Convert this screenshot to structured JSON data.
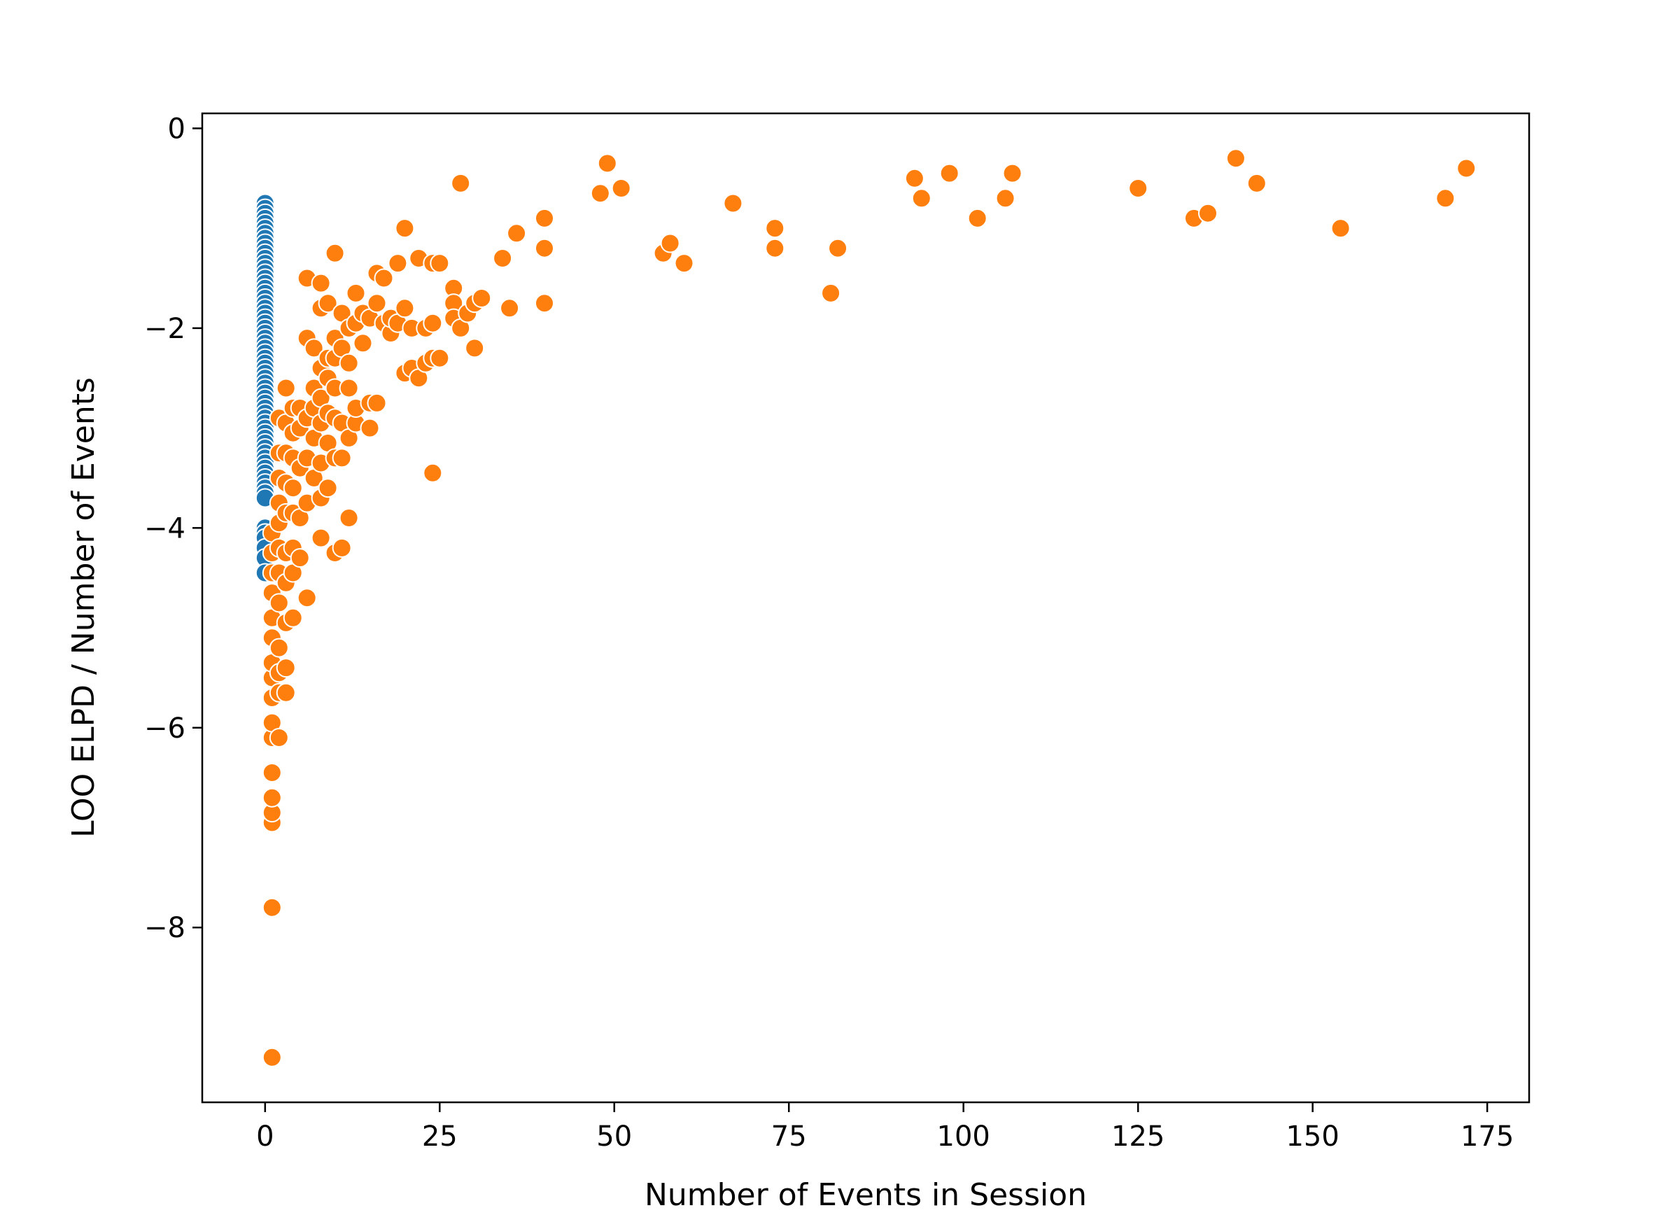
{
  "chart_data": {
    "type": "scatter",
    "title": "",
    "xlabel": "Number of Events in Session",
    "ylabel": "LOO ELPD / Number of Events",
    "xlim": [
      -9,
      181
    ],
    "ylim": [
      -9.75,
      0.15
    ],
    "xticks": [
      0,
      25,
      50,
      75,
      100,
      125,
      150,
      175
    ],
    "yticks": [
      0,
      -2,
      -4,
      -6,
      -8
    ],
    "xtick_labels": [
      "0",
      "25",
      "50",
      "75",
      "100",
      "125",
      "150",
      "175"
    ],
    "ytick_labels": [
      "0",
      "−2",
      "−4",
      "−6",
      "−8"
    ],
    "grid": false,
    "legend": "none",
    "series": [
      {
        "color": "#1f77b4",
        "points": [
          [
            0,
            -0.75
          ],
          [
            0,
            -0.8
          ],
          [
            0,
            -0.85
          ],
          [
            0,
            -0.9
          ],
          [
            0,
            -0.95
          ],
          [
            0,
            -1.0
          ],
          [
            0,
            -1.05
          ],
          [
            0,
            -1.1
          ],
          [
            0,
            -1.15
          ],
          [
            0,
            -1.2
          ],
          [
            0,
            -1.25
          ],
          [
            0,
            -1.3
          ],
          [
            0,
            -1.35
          ],
          [
            0,
            -1.4
          ],
          [
            0,
            -1.45
          ],
          [
            0,
            -1.5
          ],
          [
            0,
            -1.55
          ],
          [
            0,
            -1.6
          ],
          [
            0,
            -1.65
          ],
          [
            0,
            -1.7
          ],
          [
            0,
            -1.75
          ],
          [
            0,
            -1.8
          ],
          [
            0,
            -1.85
          ],
          [
            0,
            -1.9
          ],
          [
            0,
            -1.95
          ],
          [
            0,
            -2.0
          ],
          [
            0,
            -2.05
          ],
          [
            0,
            -2.1
          ],
          [
            0,
            -2.15
          ],
          [
            0,
            -2.2
          ],
          [
            0,
            -2.25
          ],
          [
            0,
            -2.3
          ],
          [
            0,
            -2.35
          ],
          [
            0,
            -2.4
          ],
          [
            0,
            -2.45
          ],
          [
            0,
            -2.5
          ],
          [
            0,
            -2.55
          ],
          [
            0,
            -2.6
          ],
          [
            0,
            -2.65
          ],
          [
            0,
            -2.7
          ],
          [
            0,
            -2.75
          ],
          [
            0,
            -2.8
          ],
          [
            0,
            -2.85
          ],
          [
            0,
            -2.9
          ],
          [
            0,
            -2.95
          ],
          [
            0,
            -3.0
          ],
          [
            0,
            -3.05
          ],
          [
            0,
            -3.1
          ],
          [
            0,
            -3.15
          ],
          [
            0,
            -3.2
          ],
          [
            0,
            -3.25
          ],
          [
            0,
            -3.3
          ],
          [
            0,
            -3.35
          ],
          [
            0,
            -3.4
          ],
          [
            0,
            -3.45
          ],
          [
            0,
            -3.5
          ],
          [
            0,
            -3.55
          ],
          [
            0,
            -3.6
          ],
          [
            0,
            -3.65
          ],
          [
            0,
            -3.7
          ],
          [
            0,
            -4.0
          ],
          [
            0,
            -4.05
          ],
          [
            0,
            -4.1
          ],
          [
            0,
            -4.2
          ],
          [
            0,
            -4.3
          ],
          [
            0,
            -4.45
          ]
        ]
      },
      {
        "color": "#ff7f0e",
        "points": [
          [
            1,
            -9.3
          ],
          [
            1,
            -7.8
          ],
          [
            1,
            -6.95
          ],
          [
            1,
            -6.85
          ],
          [
            1,
            -6.7
          ],
          [
            1,
            -6.45
          ],
          [
            1,
            -6.1
          ],
          [
            1,
            -5.95
          ],
          [
            1,
            -5.7
          ],
          [
            1,
            -5.5
          ],
          [
            1,
            -5.35
          ],
          [
            1,
            -5.1
          ],
          [
            1,
            -4.9
          ],
          [
            1,
            -4.65
          ],
          [
            1,
            -4.45
          ],
          [
            1,
            -4.25
          ],
          [
            1,
            -4.05
          ],
          [
            2,
            -6.1
          ],
          [
            2,
            -5.65
          ],
          [
            2,
            -5.45
          ],
          [
            2,
            -5.2
          ],
          [
            2,
            -4.75
          ],
          [
            2,
            -4.45
          ],
          [
            2,
            -4.2
          ],
          [
            2,
            -3.95
          ],
          [
            2,
            -3.75
          ],
          [
            2,
            -3.5
          ],
          [
            2,
            -3.25
          ],
          [
            2,
            -2.9
          ],
          [
            3,
            -5.65
          ],
          [
            3,
            -5.4
          ],
          [
            3,
            -4.95
          ],
          [
            3,
            -4.55
          ],
          [
            3,
            -4.25
          ],
          [
            3,
            -3.85
          ],
          [
            3,
            -3.55
          ],
          [
            3,
            -3.25
          ],
          [
            3,
            -2.95
          ],
          [
            3,
            -2.6
          ],
          [
            4,
            -4.9
          ],
          [
            4,
            -4.45
          ],
          [
            4,
            -4.2
          ],
          [
            4,
            -3.85
          ],
          [
            4,
            -3.6
          ],
          [
            4,
            -3.3
          ],
          [
            4,
            -3.05
          ],
          [
            4,
            -2.8
          ],
          [
            5,
            -4.3
          ],
          [
            5,
            -3.9
          ],
          [
            5,
            -3.4
          ],
          [
            5,
            -3.0
          ],
          [
            5,
            -2.8
          ],
          [
            6,
            -4.7
          ],
          [
            6,
            -3.75
          ],
          [
            6,
            -3.3
          ],
          [
            6,
            -2.9
          ],
          [
            6,
            -2.1
          ],
          [
            6,
            -1.5
          ],
          [
            7,
            -3.5
          ],
          [
            7,
            -3.1
          ],
          [
            7,
            -2.8
          ],
          [
            7,
            -2.6
          ],
          [
            7,
            -2.2
          ],
          [
            8,
            -4.1
          ],
          [
            8,
            -3.7
          ],
          [
            8,
            -3.35
          ],
          [
            8,
            -2.95
          ],
          [
            8,
            -2.7
          ],
          [
            8,
            -2.4
          ],
          [
            8,
            -1.8
          ],
          [
            8,
            -1.55
          ],
          [
            9,
            -3.6
          ],
          [
            9,
            -3.15
          ],
          [
            9,
            -2.85
          ],
          [
            9,
            -2.5
          ],
          [
            9,
            -2.3
          ],
          [
            9,
            -1.75
          ],
          [
            10,
            -4.25
          ],
          [
            10,
            -3.3
          ],
          [
            10,
            -2.9
          ],
          [
            10,
            -2.6
          ],
          [
            10,
            -2.3
          ],
          [
            10,
            -2.1
          ],
          [
            10,
            -1.25
          ],
          [
            11,
            -4.2
          ],
          [
            11,
            -3.3
          ],
          [
            11,
            -2.95
          ],
          [
            11,
            -2.2
          ],
          [
            11,
            -1.85
          ],
          [
            12,
            -3.9
          ],
          [
            12,
            -3.1
          ],
          [
            12,
            -2.6
          ],
          [
            12,
            -2.35
          ],
          [
            12,
            -2.0
          ],
          [
            13,
            -2.95
          ],
          [
            13,
            -2.8
          ],
          [
            13,
            -1.95
          ],
          [
            13,
            -1.65
          ],
          [
            14,
            -2.15
          ],
          [
            14,
            -1.85
          ],
          [
            15,
            -3.0
          ],
          [
            15,
            -2.75
          ],
          [
            15,
            -1.9
          ],
          [
            16,
            -2.75
          ],
          [
            16,
            -1.75
          ],
          [
            16,
            -1.45
          ],
          [
            17,
            -1.95
          ],
          [
            17,
            -1.5
          ],
          [
            18,
            -2.05
          ],
          [
            18,
            -1.9
          ],
          [
            19,
            -1.95
          ],
          [
            19,
            -1.35
          ],
          [
            20,
            -2.45
          ],
          [
            20,
            -1.8
          ],
          [
            20,
            -1.0
          ],
          [
            21,
            -2.4
          ],
          [
            21,
            -2.0
          ],
          [
            22,
            -2.5
          ],
          [
            22,
            -1.3
          ],
          [
            23,
            -2.35
          ],
          [
            23,
            -2.0
          ],
          [
            24,
            -3.45
          ],
          [
            24,
            -2.3
          ],
          [
            24,
            -1.95
          ],
          [
            24,
            -1.35
          ],
          [
            25,
            -2.3
          ],
          [
            25,
            -1.35
          ],
          [
            27,
            -1.6
          ],
          [
            27,
            -1.75
          ],
          [
            27,
            -1.9
          ],
          [
            28,
            -0.55
          ],
          [
            28,
            -2.0
          ],
          [
            29,
            -1.85
          ],
          [
            30,
            -1.75
          ],
          [
            30,
            -2.2
          ],
          [
            31,
            -1.7
          ],
          [
            34,
            -1.3
          ],
          [
            35,
            -1.8
          ],
          [
            36,
            -1.05
          ],
          [
            40,
            -0.9
          ],
          [
            40,
            -1.2
          ],
          [
            40,
            -1.75
          ],
          [
            48,
            -0.65
          ],
          [
            49,
            -0.35
          ],
          [
            51,
            -0.6
          ],
          [
            57,
            -1.25
          ],
          [
            58,
            -1.15
          ],
          [
            60,
            -1.35
          ],
          [
            67,
            -0.75
          ],
          [
            73,
            -1.0
          ],
          [
            73,
            -1.2
          ],
          [
            81,
            -1.65
          ],
          [
            82,
            -1.2
          ],
          [
            93,
            -0.5
          ],
          [
            94,
            -0.7
          ],
          [
            98,
            -0.45
          ],
          [
            102,
            -0.9
          ],
          [
            106,
            -0.7
          ],
          [
            107,
            -0.45
          ],
          [
            125,
            -0.6
          ],
          [
            133,
            -0.9
          ],
          [
            135,
            -0.85
          ],
          [
            139,
            -0.3
          ],
          [
            142,
            -0.55
          ],
          [
            154,
            -1.0
          ],
          [
            169,
            -0.7
          ],
          [
            172,
            -0.4
          ]
        ]
      }
    ]
  }
}
